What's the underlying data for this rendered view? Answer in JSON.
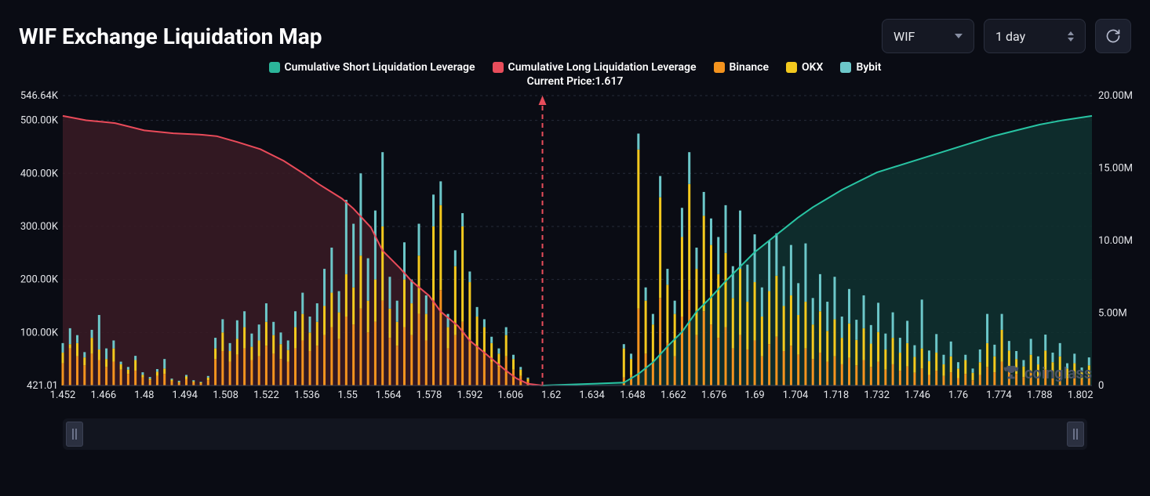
{
  "header": {
    "title": "WIF Exchange Liquidation Map"
  },
  "controls": {
    "symbol": {
      "label": "WIF"
    },
    "timeframe": {
      "label": "1 day"
    }
  },
  "legend": [
    {
      "label": "Cumulative Short Liquidation Leverage",
      "color": "#2bb59a"
    },
    {
      "label": "Cumulative Long Liquidation Leverage",
      "color": "#e84d5b"
    },
    {
      "label": "Binance",
      "color": "#f3931e"
    },
    {
      "label": "OKX",
      "color": "#f3c91e"
    },
    {
      "label": "Bybit",
      "color": "#6cc7c9"
    }
  ],
  "chart": {
    "current_price": 1.617,
    "current_price_label": "Current Price:1.617",
    "x": {
      "min": 1.452,
      "max": 1.806,
      "tick_step": 0.014,
      "ticks": [
        1.452,
        1.466,
        1.48,
        1.494,
        1.508,
        1.522,
        1.536,
        1.55,
        1.564,
        1.578,
        1.592,
        1.606,
        1.62,
        1.634,
        1.648,
        1.662,
        1.676,
        1.69,
        1.704,
        1.718,
        1.732,
        1.746,
        1.76,
        1.774,
        1.788,
        1.802
      ]
    },
    "y_left": {
      "label_min": "421.01",
      "ticks": [
        0,
        100000,
        200000,
        300000,
        400000,
        500000,
        546640
      ],
      "tick_labels": [
        "421.01",
        "100.00K",
        "200.00K",
        "300.00K",
        "400.00K",
        "500.00K",
        "546.64K"
      ],
      "max": 546640
    },
    "y_right": {
      "ticks": [
        0,
        5000000,
        10000000,
        15000000,
        20000000
      ],
      "tick_labels": [
        "0",
        "5.00M",
        "10.00M",
        "15.00M",
        "20.00M"
      ],
      "max": 20000000
    },
    "colors": {
      "background": "#0a0c14",
      "grid": "#262b39",
      "axis_text": "#e5e7eb",
      "vline": "#e84d5b",
      "long_fill": "#3a1b24",
      "short_fill": "#0f3330",
      "long_line": "#ea4b5a",
      "short_line": "#28c4a3",
      "binance": "#f3931e",
      "okx": "#f3c91e",
      "bybit": "#6cc7c9"
    },
    "fonts": {
      "axis_fontsize": 13,
      "legend_fontsize": 14
    },
    "watermark": "coinglass",
    "cum_long_right": [
      [
        1.452,
        18600000
      ],
      [
        1.46,
        18300000
      ],
      [
        1.47,
        18100000
      ],
      [
        1.48,
        17600000
      ],
      [
        1.49,
        17400000
      ],
      [
        1.5,
        17300000
      ],
      [
        1.505,
        17200000
      ],
      [
        1.512,
        16800000
      ],
      [
        1.52,
        16300000
      ],
      [
        1.528,
        15500000
      ],
      [
        1.535,
        14600000
      ],
      [
        1.54,
        13900000
      ],
      [
        1.548,
        12900000
      ],
      [
        1.552,
        12200000
      ],
      [
        1.558,
        10900000
      ],
      [
        1.562,
        9300000
      ],
      [
        1.568,
        8100000
      ],
      [
        1.572,
        7200000
      ],
      [
        1.578,
        6200000
      ],
      [
        1.582,
        5100000
      ],
      [
        1.588,
        4100000
      ],
      [
        1.592,
        3100000
      ],
      [
        1.598,
        2100000
      ],
      [
        1.604,
        1100000
      ],
      [
        1.608,
        500000
      ],
      [
        1.612,
        120000
      ],
      [
        1.617,
        0
      ]
    ],
    "cum_short_right": [
      [
        1.617,
        0
      ],
      [
        1.645,
        200000
      ],
      [
        1.65,
        800000
      ],
      [
        1.655,
        1600000
      ],
      [
        1.66,
        2700000
      ],
      [
        1.665,
        3700000
      ],
      [
        1.67,
        5100000
      ],
      [
        1.675,
        6100000
      ],
      [
        1.68,
        7200000
      ],
      [
        1.685,
        8200000
      ],
      [
        1.69,
        9200000
      ],
      [
        1.695,
        10000000
      ],
      [
        1.7,
        10800000
      ],
      [
        1.705,
        11600000
      ],
      [
        1.71,
        12300000
      ],
      [
        1.715,
        12900000
      ],
      [
        1.72,
        13500000
      ],
      [
        1.726,
        14100000
      ],
      [
        1.732,
        14700000
      ],
      [
        1.74,
        15200000
      ],
      [
        1.748,
        15700000
      ],
      [
        1.756,
        16200000
      ],
      [
        1.764,
        16700000
      ],
      [
        1.772,
        17200000
      ],
      [
        1.78,
        17600000
      ],
      [
        1.788,
        18000000
      ],
      [
        1.796,
        18300000
      ],
      [
        1.806,
        18600000
      ]
    ],
    "bars_left": [
      {
        "x": 1.452,
        "binance": 42000,
        "okx": 20000,
        "bybit": 18000
      },
      {
        "x": 1.4545,
        "binance": 70000,
        "okx": 8000,
        "bybit": 30000
      },
      {
        "x": 1.457,
        "binance": 55000,
        "okx": 25000,
        "bybit": 15000
      },
      {
        "x": 1.4595,
        "binance": 38000,
        "okx": 15000,
        "bybit": 10000
      },
      {
        "x": 1.462,
        "binance": 60000,
        "okx": 30000,
        "bybit": 15000
      },
      {
        "x": 1.4645,
        "binance": 48000,
        "okx": 20000,
        "bybit": 65000
      },
      {
        "x": 1.467,
        "binance": 35000,
        "okx": 15000,
        "bybit": 20000
      },
      {
        "x": 1.4695,
        "binance": 45000,
        "okx": 25000,
        "bybit": 15000
      },
      {
        "x": 1.472,
        "binance": 30000,
        "okx": 10000,
        "bybit": 5000
      },
      {
        "x": 1.4745,
        "binance": 22000,
        "okx": 8000,
        "bybit": 5000
      },
      {
        "x": 1.477,
        "binance": 28000,
        "okx": 20000,
        "bybit": 8000
      },
      {
        "x": 1.4795,
        "binance": 15000,
        "okx": 5000,
        "bybit": 5000
      },
      {
        "x": 1.482,
        "binance": 10000,
        "okx": 3000,
        "bybit": 3000
      },
      {
        "x": 1.4845,
        "binance": 18000,
        "okx": 8000,
        "bybit": 5000
      },
      {
        "x": 1.487,
        "binance": 22000,
        "okx": 10000,
        "bybit": 18000
      },
      {
        "x": 1.4895,
        "binance": 8000,
        "okx": 3000,
        "bybit": 2000
      },
      {
        "x": 1.492,
        "binance": 5000,
        "okx": 2000,
        "bybit": 2000
      },
      {
        "x": 1.4945,
        "binance": 12000,
        "okx": 5000,
        "bybit": 3000
      },
      {
        "x": 1.497,
        "binance": 6000,
        "okx": 2000,
        "bybit": 2000
      },
      {
        "x": 1.4995,
        "binance": 4000,
        "okx": 2000,
        "bybit": 1000
      },
      {
        "x": 1.502,
        "binance": 10000,
        "okx": 5000,
        "bybit": 3000
      },
      {
        "x": 1.5045,
        "binance": 50000,
        "okx": 20000,
        "bybit": 20000
      },
      {
        "x": 1.507,
        "binance": 65000,
        "okx": 35000,
        "bybit": 25000
      },
      {
        "x": 1.5095,
        "binance": 45000,
        "okx": 20000,
        "bybit": 15000
      },
      {
        "x": 1.512,
        "binance": 58000,
        "okx": 30000,
        "bybit": 35000
      },
      {
        "x": 1.5145,
        "binance": 70000,
        "okx": 40000,
        "bybit": 30000
      },
      {
        "x": 1.517,
        "binance": 48000,
        "okx": 25000,
        "bybit": 25000
      },
      {
        "x": 1.5195,
        "binance": 55000,
        "okx": 30000,
        "bybit": 30000
      },
      {
        "x": 1.522,
        "binance": 75000,
        "okx": 45000,
        "bybit": 35000
      },
      {
        "x": 1.5245,
        "binance": 60000,
        "okx": 35000,
        "bybit": 25000
      },
      {
        "x": 1.527,
        "binance": 50000,
        "okx": 28000,
        "bybit": 22000
      },
      {
        "x": 1.5295,
        "binance": 45000,
        "okx": 22000,
        "bybit": 18000
      },
      {
        "x": 1.532,
        "binance": 70000,
        "okx": 40000,
        "bybit": 30000
      },
      {
        "x": 1.5345,
        "binance": 85000,
        "okx": 50000,
        "bybit": 40000
      },
      {
        "x": 1.537,
        "binance": 65000,
        "okx": 35000,
        "bybit": 30000
      },
      {
        "x": 1.5395,
        "binance": 75000,
        "okx": 45000,
        "bybit": 35000
      },
      {
        "x": 1.542,
        "binance": 95000,
        "okx": 55000,
        "bybit": 70000
      },
      {
        "x": 1.5445,
        "binance": 110000,
        "okx": 65000,
        "bybit": 85000
      },
      {
        "x": 1.547,
        "binance": 88000,
        "okx": 50000,
        "bybit": 40000
      },
      {
        "x": 1.5495,
        "binance": 130000,
        "okx": 80000,
        "bybit": 140000
      },
      {
        "x": 1.552,
        "binance": 115000,
        "okx": 70000,
        "bybit": 120000
      },
      {
        "x": 1.5545,
        "binance": 145000,
        "okx": 100000,
        "bybit": 155000
      },
      {
        "x": 1.557,
        "binance": 100000,
        "okx": 60000,
        "bybit": 80000
      },
      {
        "x": 1.5595,
        "binance": 120000,
        "okx": 80000,
        "bybit": 130000
      },
      {
        "x": 1.562,
        "binance": 160000,
        "okx": 140000,
        "bybit": 140000
      },
      {
        "x": 1.5645,
        "binance": 90000,
        "okx": 55000,
        "bybit": 60000
      },
      {
        "x": 1.567,
        "binance": 75000,
        "okx": 45000,
        "bybit": 40000
      },
      {
        "x": 1.5695,
        "binance": 110000,
        "okx": 90000,
        "bybit": 70000
      },
      {
        "x": 1.572,
        "binance": 95000,
        "okx": 60000,
        "bybit": 45000
      },
      {
        "x": 1.5745,
        "binance": 135000,
        "okx": 110000,
        "bybit": 60000
      },
      {
        "x": 1.577,
        "binance": 85000,
        "okx": 50000,
        "bybit": 35000
      },
      {
        "x": 1.5795,
        "binance": 160000,
        "okx": 140000,
        "bybit": 60000
      },
      {
        "x": 1.582,
        "binance": 180000,
        "okx": 160000,
        "bybit": 45000
      },
      {
        "x": 1.5845,
        "binance": 70000,
        "okx": 40000,
        "bybit": 25000
      },
      {
        "x": 1.587,
        "binance": 95000,
        "okx": 130000,
        "bybit": 30000
      },
      {
        "x": 1.5895,
        "binance": 120000,
        "okx": 180000,
        "bybit": 25000
      },
      {
        "x": 1.592,
        "binance": 85000,
        "okx": 110000,
        "bybit": 20000
      },
      {
        "x": 1.5945,
        "binance": 70000,
        "okx": 60000,
        "bybit": 18000
      },
      {
        "x": 1.597,
        "binance": 60000,
        "okx": 50000,
        "bybit": 15000
      },
      {
        "x": 1.5995,
        "binance": 45000,
        "okx": 35000,
        "bybit": 12000
      },
      {
        "x": 1.602,
        "binance": 35000,
        "okx": 25000,
        "bybit": 10000
      },
      {
        "x": 1.6045,
        "binance": 55000,
        "okx": 40000,
        "bybit": 15000
      },
      {
        "x": 1.607,
        "binance": 30000,
        "okx": 20000,
        "bybit": 8000
      },
      {
        "x": 1.6095,
        "binance": 18000,
        "okx": 12000,
        "bybit": 5000
      },
      {
        "x": 1.612,
        "binance": 8000,
        "okx": 5000,
        "bybit": 2000
      }
    ],
    "bars_right": [
      {
        "x": 1.645,
        "binance": 15000,
        "okx": 55000,
        "bybit": 8000
      },
      {
        "x": 1.6475,
        "binance": 20000,
        "okx": 30000,
        "bybit": 10000
      },
      {
        "x": 1.65,
        "binance": 145000,
        "okx": 300000,
        "bybit": 30000
      },
      {
        "x": 1.6525,
        "binance": 60000,
        "okx": 100000,
        "bybit": 25000
      },
      {
        "x": 1.655,
        "binance": 45000,
        "okx": 70000,
        "bybit": 20000
      },
      {
        "x": 1.6575,
        "binance": 165000,
        "okx": 190000,
        "bybit": 40000
      },
      {
        "x": 1.66,
        "binance": 80000,
        "okx": 110000,
        "bybit": 30000
      },
      {
        "x": 1.6625,
        "binance": 55000,
        "okx": 80000,
        "bybit": 25000
      },
      {
        "x": 1.665,
        "binance": 130000,
        "okx": 150000,
        "bybit": 55000
      },
      {
        "x": 1.6675,
        "binance": 180000,
        "okx": 200000,
        "bybit": 60000
      },
      {
        "x": 1.67,
        "binance": 95000,
        "okx": 125000,
        "bybit": 40000
      },
      {
        "x": 1.6725,
        "binance": 140000,
        "okx": 180000,
        "bybit": 45000
      },
      {
        "x": 1.675,
        "binance": 115000,
        "okx": 150000,
        "bybit": 50000
      },
      {
        "x": 1.6775,
        "binance": 90000,
        "okx": 120000,
        "bybit": 70000
      },
      {
        "x": 1.68,
        "binance": 110000,
        "okx": 140000,
        "bybit": 90000
      },
      {
        "x": 1.6825,
        "binance": 70000,
        "okx": 95000,
        "bybit": 60000
      },
      {
        "x": 1.685,
        "binance": 95000,
        "okx": 125000,
        "bybit": 110000
      },
      {
        "x": 1.6875,
        "binance": 68000,
        "okx": 90000,
        "bybit": 70000
      },
      {
        "x": 1.69,
        "binance": 85000,
        "okx": 110000,
        "bybit": 90000
      },
      {
        "x": 1.6925,
        "binance": 55000,
        "okx": 75000,
        "bybit": 55000
      },
      {
        "x": 1.695,
        "binance": 78000,
        "okx": 100000,
        "bybit": 95000
      },
      {
        "x": 1.6975,
        "binance": 92000,
        "okx": 115000,
        "bybit": 80000
      },
      {
        "x": 1.7,
        "binance": 65000,
        "okx": 85000,
        "bybit": 75000
      },
      {
        "x": 1.7025,
        "binance": 75000,
        "okx": 95000,
        "bybit": 95000
      },
      {
        "x": 1.705,
        "binance": 58000,
        "okx": 75000,
        "bybit": 60000
      },
      {
        "x": 1.7075,
        "binance": 70000,
        "okx": 88000,
        "bybit": 110000
      },
      {
        "x": 1.71,
        "binance": 50000,
        "okx": 65000,
        "bybit": 50000
      },
      {
        "x": 1.7125,
        "binance": 62000,
        "okx": 78000,
        "bybit": 70000
      },
      {
        "x": 1.715,
        "binance": 45000,
        "okx": 58000,
        "bybit": 55000
      },
      {
        "x": 1.7175,
        "binance": 55000,
        "okx": 70000,
        "bybit": 80000
      },
      {
        "x": 1.72,
        "binance": 40000,
        "okx": 50000,
        "bybit": 40000
      },
      {
        "x": 1.7225,
        "binance": 52000,
        "okx": 65000,
        "bybit": 65000
      },
      {
        "x": 1.725,
        "binance": 38000,
        "okx": 48000,
        "bybit": 38000
      },
      {
        "x": 1.7275,
        "binance": 48000,
        "okx": 60000,
        "bybit": 62000
      },
      {
        "x": 1.73,
        "binance": 35000,
        "okx": 44000,
        "bybit": 35000
      },
      {
        "x": 1.7325,
        "binance": 45000,
        "okx": 56000,
        "bybit": 55000
      },
      {
        "x": 1.735,
        "binance": 30000,
        "okx": 38000,
        "bybit": 30000
      },
      {
        "x": 1.7375,
        "binance": 40000,
        "okx": 50000,
        "bybit": 48000
      },
      {
        "x": 1.74,
        "binance": 28000,
        "okx": 34000,
        "bybit": 28000
      },
      {
        "x": 1.7425,
        "binance": 36000,
        "okx": 44000,
        "bybit": 42000
      },
      {
        "x": 1.745,
        "binance": 24000,
        "okx": 30000,
        "bybit": 22000
      },
      {
        "x": 1.7475,
        "binance": 32000,
        "okx": 38000,
        "bybit": 92000
      },
      {
        "x": 1.75,
        "binance": 20000,
        "okx": 26000,
        "bybit": 20000
      },
      {
        "x": 1.7525,
        "binance": 28000,
        "okx": 34000,
        "bybit": 35000
      },
      {
        "x": 1.755,
        "binance": 18000,
        "okx": 22000,
        "bybit": 18000
      },
      {
        "x": 1.7575,
        "binance": 25000,
        "okx": 30000,
        "bybit": 28000
      },
      {
        "x": 1.76,
        "binance": 14000,
        "okx": 18000,
        "bybit": 12000
      },
      {
        "x": 1.7625,
        "binance": 22000,
        "okx": 26000,
        "bybit": 10000
      },
      {
        "x": 1.765,
        "binance": 10000,
        "okx": 14000,
        "bybit": 8000
      },
      {
        "x": 1.7675,
        "binance": 20000,
        "okx": 24000,
        "bybit": 24000
      },
      {
        "x": 1.77,
        "binance": 35000,
        "okx": 45000,
        "bybit": 55000
      },
      {
        "x": 1.7725,
        "binance": 25000,
        "okx": 30000,
        "bybit": 22000
      },
      {
        "x": 1.775,
        "binance": 45000,
        "okx": 60000,
        "bybit": 30000
      },
      {
        "x": 1.7775,
        "binance": 30000,
        "okx": 36000,
        "bybit": 18000
      },
      {
        "x": 1.78,
        "binance": 22000,
        "okx": 28000,
        "bybit": 15000
      },
      {
        "x": 1.7825,
        "binance": 16000,
        "okx": 20000,
        "bybit": 12000
      },
      {
        "x": 1.785,
        "binance": 26000,
        "okx": 32000,
        "bybit": 30000
      },
      {
        "x": 1.7875,
        "binance": 18000,
        "okx": 22000,
        "bybit": 15000
      },
      {
        "x": 1.79,
        "binance": 30000,
        "okx": 36000,
        "bybit": 30000
      },
      {
        "x": 1.7925,
        "binance": 20000,
        "okx": 24000,
        "bybit": 18000
      },
      {
        "x": 1.795,
        "binance": 25000,
        "okx": 30000,
        "bybit": 25000
      },
      {
        "x": 1.7975,
        "binance": 14000,
        "okx": 18000,
        "bybit": 10000
      },
      {
        "x": 1.8,
        "binance": 20000,
        "okx": 22000,
        "bybit": 18000
      },
      {
        "x": 1.8025,
        "binance": 12000,
        "okx": 14000,
        "bybit": 8000
      },
      {
        "x": 1.805,
        "binance": 18000,
        "okx": 20000,
        "bybit": 15000
      }
    ]
  }
}
